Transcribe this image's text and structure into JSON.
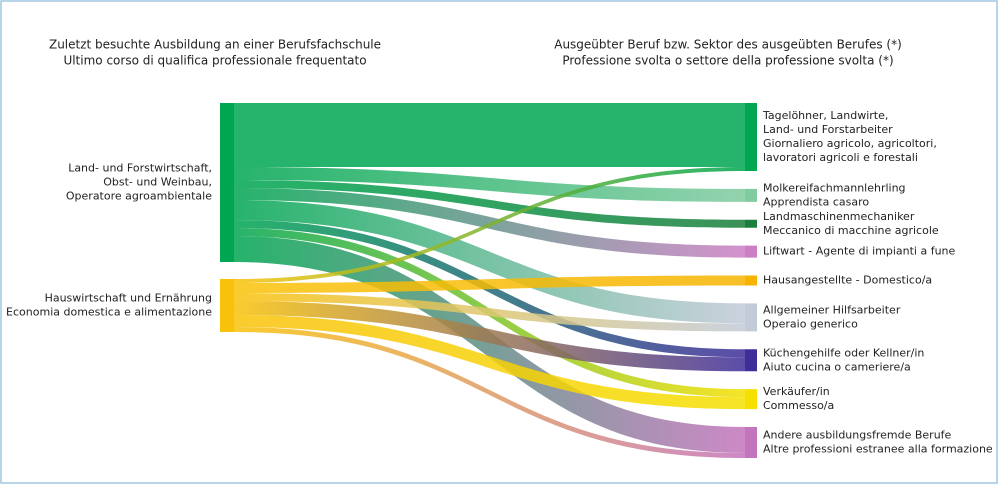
{
  "chart_data": {
    "type": "sankey",
    "left_title": [
      "Zuletzt besuchte Ausbildung an einer Berufsfachschule",
      "Ultimo corso di qualifica professionale frequentato"
    ],
    "right_title": [
      "Ausgeübter Beruf bzw. Sektor des ausgeübten Berufes (*)",
      "Professione svolta o settore della professione svolta (*)"
    ],
    "nodes": [
      {
        "label": [
          "Land- und Forstwirtschaft,",
          "Obst- und Weinbau,",
          "Operatore agroambientale"
        ],
        "color": "#00a651",
        "side": "left"
      },
      {
        "label": [
          "Hauswirtschaft und Ernährung",
          "Economia domestica e alimentazione"
        ],
        "color": "#f9c20a",
        "side": "left"
      },
      {
        "label": [
          "Tagelöhner, Landwirte,",
          "Land- und Forstarbeiter",
          "Giornaliero agricolo, agricoltori,",
          "lavoratori agricoli e forestali"
        ],
        "color": "#00a651",
        "side": "right"
      },
      {
        "label": [
          "Molkereifachmannlehrling",
          "Apprendista casaro"
        ],
        "color": "#80cba0",
        "side": "right"
      },
      {
        "label": [
          "Landmaschinenmechaniker",
          "Meccanico di macchine agricole"
        ],
        "color": "#1a7f3c",
        "side": "right"
      },
      {
        "label": [
          "Liftwart - Agente di impianti a fune"
        ],
        "color": "#cc7fc4",
        "side": "right"
      },
      {
        "label": [
          "Hausangestellte - Domestico/a"
        ],
        "color": "#f6b400",
        "side": "right"
      },
      {
        "label": [
          "Allgemeiner Hilfsarbeiter",
          "Operaio generico"
        ],
        "color": "#c3cad8",
        "side": "right"
      },
      {
        "label": [
          "Küchengehilfe oder Kellner/in",
          "Aiuto cucina o cameriere/a"
        ],
        "color": "#3f2e9a",
        "side": "right"
      },
      {
        "label": [
          "Verkäufer/in",
          "Commesso/a"
        ],
        "color": "#f5e000",
        "side": "right"
      },
      {
        "label": [
          "Andere ausbildungsfremde Berufe",
          "Altre professioni estranee alla formazione"
        ],
        "color": "#c474bc",
        "side": "right"
      }
    ],
    "links": [
      {
        "source": 0,
        "target": 2,
        "value": 64
      },
      {
        "source": 0,
        "target": 3,
        "value": 13
      },
      {
        "source": 0,
        "target": 4,
        "value": 8
      },
      {
        "source": 0,
        "target": 5,
        "value": 12
      },
      {
        "source": 0,
        "target": 7,
        "value": 20
      },
      {
        "source": 0,
        "target": 8,
        "value": 8
      },
      {
        "source": 0,
        "target": 9,
        "value": 8
      },
      {
        "source": 0,
        "target": 10,
        "value": 26
      },
      {
        "source": 1,
        "target": 2,
        "value": 4
      },
      {
        "source": 1,
        "target": 6,
        "value": 10
      },
      {
        "source": 1,
        "target": 7,
        "value": 8
      },
      {
        "source": 1,
        "target": 8,
        "value": 14
      },
      {
        "source": 1,
        "target": 9,
        "value": 12
      },
      {
        "source": 1,
        "target": 10,
        "value": 5
      }
    ]
  }
}
